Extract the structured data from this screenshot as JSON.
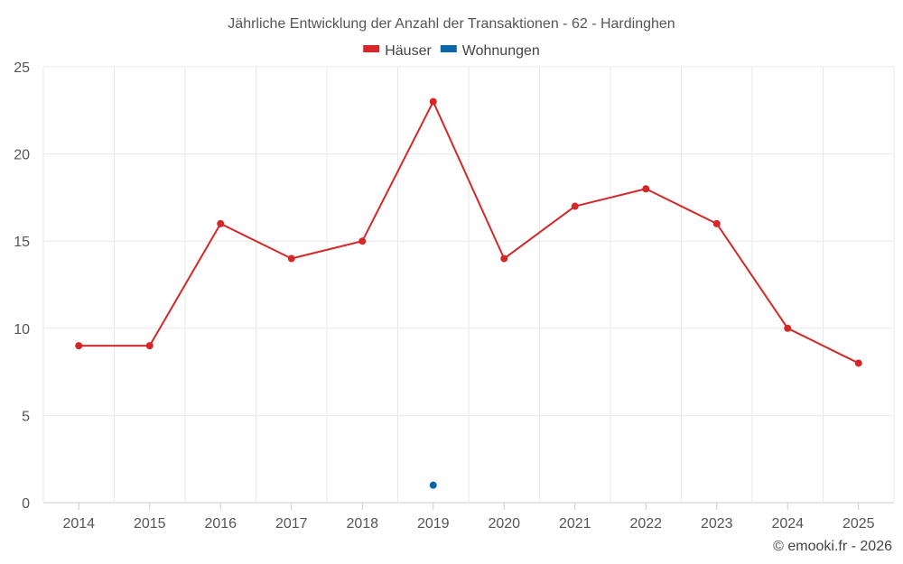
{
  "chart_data": {
    "type": "line",
    "title": "Jährliche Entwicklung der Anzahl der Transaktionen - 62 - Hardinghen",
    "categories": [
      "2014",
      "2015",
      "2016",
      "2017",
      "2018",
      "2019",
      "2020",
      "2021",
      "2022",
      "2023",
      "2024",
      "2025"
    ],
    "ylim": [
      0,
      25
    ],
    "yticks": [
      0,
      5,
      10,
      15,
      20,
      25
    ],
    "grid": true,
    "legend_position": "top-center",
    "series": [
      {
        "name": "Häuser",
        "color": "#d62728",
        "values": [
          9,
          9,
          16,
          14,
          15,
          23,
          14,
          17,
          18,
          16,
          10,
          8
        ]
      },
      {
        "name": "Wohnungen",
        "color": "#0b66a8",
        "values": [
          null,
          null,
          null,
          null,
          null,
          1,
          null,
          null,
          null,
          null,
          null,
          null
        ]
      }
    ],
    "xlabel": "",
    "ylabel": ""
  },
  "credit": "© emooki.fr - 2026"
}
